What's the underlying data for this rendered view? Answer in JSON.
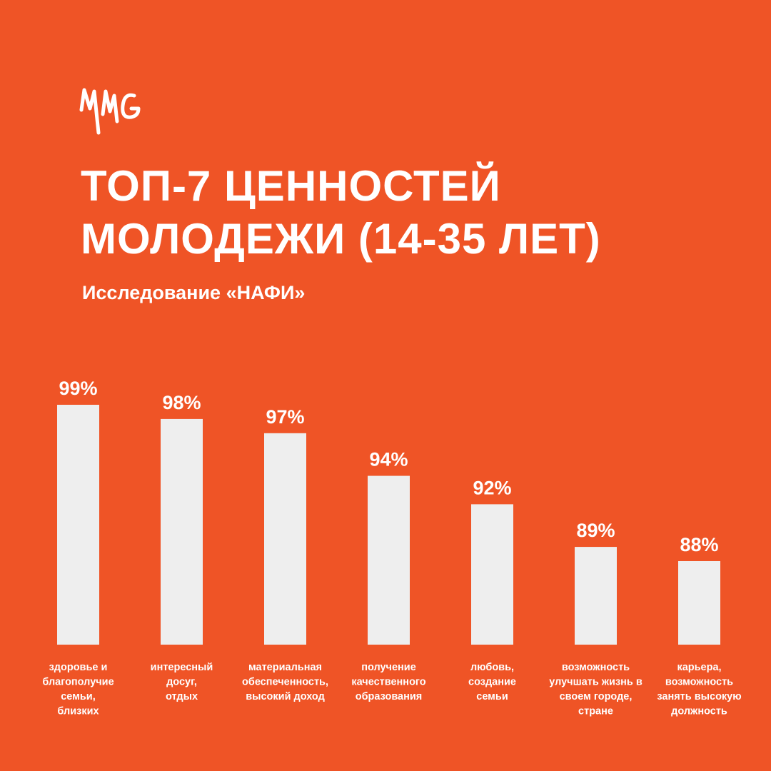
{
  "logo": {
    "text": "MMG"
  },
  "header": {
    "title_line1": "ТОП-7 ЦЕННОСТЕЙ",
    "title_line2": "МОЛОДЕЖИ (14-35 ЛЕТ)",
    "subtitle": "Исследование «НАФИ»"
  },
  "colors": {
    "background": "#EF5426",
    "bar": "#EEEEEE",
    "text": "#FFFFFF"
  },
  "chart_data": {
    "type": "bar",
    "categories": [
      [
        "здоровье и",
        "благополучие",
        "семьи,",
        "близких"
      ],
      [
        "интересный",
        "досуг,",
        "отдых"
      ],
      [
        "материальная",
        "обеспеченность,",
        "высокий доход"
      ],
      [
        "получение",
        "качественного",
        "образования"
      ],
      [
        "любовь,",
        "создание",
        "семьи"
      ],
      [
        "возможность",
        "улучшать жизнь в",
        "своем городе,",
        "стране"
      ],
      [
        "карьера,",
        "возможность",
        "занять высокую",
        "должность"
      ]
    ],
    "values": [
      99,
      98,
      97,
      94,
      92,
      89,
      88
    ],
    "value_labels": [
      "99%",
      "98%",
      "97%",
      "94%",
      "92%",
      "89%",
      "88%"
    ],
    "unit": "%",
    "grid": false,
    "legend": "none"
  }
}
